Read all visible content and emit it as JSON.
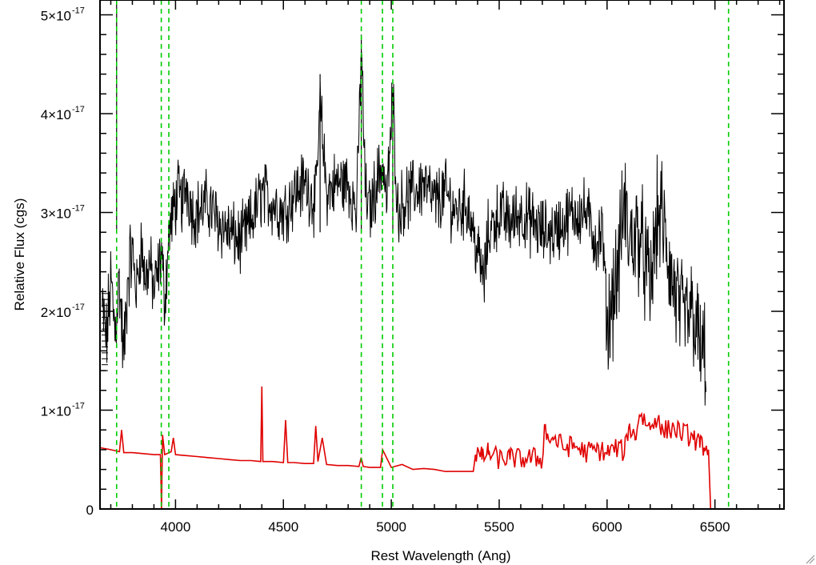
{
  "chart_data": {
    "type": "line",
    "title": "",
    "xlabel": "Rest Wavelength (Ang)",
    "ylabel": "Relative Flux (cgs)",
    "xlim": [
      3650,
      6820
    ],
    "ylim": [
      0,
      5.15
    ],
    "y_unit_label": "×10",
    "y_exponent": "-17",
    "x_ticks": [
      {
        "value": 4000,
        "label": "4000"
      },
      {
        "value": 4500,
        "label": "4500"
      },
      {
        "value": 5000,
        "label": "5000"
      },
      {
        "value": 5500,
        "label": "5500"
      },
      {
        "value": 6000,
        "label": "6000"
      },
      {
        "value": 6500,
        "label": "6500"
      }
    ],
    "y_ticks": [
      {
        "value": 0,
        "mantissa": "0",
        "label": "0",
        "exp": ""
      },
      {
        "value": 1,
        "mantissa": "1",
        "label": "1×10",
        "exp": "-17"
      },
      {
        "value": 2,
        "mantissa": "2",
        "label": "2×10",
        "exp": "-17"
      },
      {
        "value": 3,
        "mantissa": "3",
        "label": "3×10",
        "exp": "-17"
      },
      {
        "value": 4,
        "mantissa": "4",
        "label": "4×10",
        "exp": "-17"
      },
      {
        "value": 5,
        "mantissa": "5",
        "label": "5×10",
        "exp": "-17"
      }
    ],
    "series": [
      {
        "color": "#000000",
        "x": [
          3660,
          3680,
          3700,
          3720,
          3730,
          3740,
          3760,
          3780,
          3800,
          3820,
          3840,
          3860,
          3880,
          3900,
          3920,
          3935,
          3950,
          3970,
          3990,
          4010,
          4030,
          4050,
          4080,
          4100,
          4150,
          4200,
          4250,
          4300,
          4350,
          4400,
          4450,
          4500,
          4550,
          4600,
          4650,
          4670,
          4700,
          4750,
          4800,
          4840,
          4861,
          4880,
          4900,
          4930,
          4959,
          4980,
          5007,
          5030,
          5050,
          5100,
          5150,
          5200,
          5250,
          5300,
          5350,
          5400,
          5430,
          5450,
          5500,
          5550,
          5600,
          5650,
          5700,
          5750,
          5800,
          5850,
          5900,
          5950,
          5980,
          6000,
          6020,
          6050,
          6080,
          6100,
          6150,
          6200,
          6230,
          6250,
          6300,
          6350,
          6400,
          6430,
          6460
        ],
        "y": [
          2.0,
          1.7,
          2.3,
          1.8,
          2.1,
          2.3,
          1.5,
          2.4,
          2.6,
          2.2,
          2.7,
          2.3,
          2.5,
          2.2,
          2.4,
          2.6,
          2.1,
          2.8,
          3.0,
          3.2,
          3.1,
          3.3,
          3.0,
          3.0,
          3.1,
          2.9,
          2.8,
          2.7,
          2.9,
          3.2,
          3.1,
          3.0,
          3.2,
          3.3,
          3.1,
          4.1,
          3.2,
          3.3,
          3.3,
          3.0,
          4.7,
          3.2,
          3.0,
          3.3,
          3.5,
          3.1,
          4.2,
          3.0,
          3.1,
          3.2,
          3.3,
          3.1,
          3.2,
          3.0,
          3.1,
          2.6,
          2.3,
          2.8,
          3.0,
          2.9,
          3.0,
          2.9,
          2.8,
          2.8,
          2.9,
          3.0,
          3.0,
          2.7,
          2.8,
          1.8,
          2.1,
          2.4,
          3.1,
          2.7,
          2.8,
          2.2,
          2.9,
          3.0,
          2.3,
          1.9,
          2.0,
          1.6,
          1.5
        ]
      },
      {
        "color": "#e00000",
        "x": [
          3650,
          3700,
          3740,
          3750,
          3760,
          3800,
          3850,
          3900,
          3930,
          3935,
          3940,
          3950,
          3980,
          3990,
          4000,
          4050,
          4100,
          4150,
          4200,
          4250,
          4300,
          4350,
          4395,
          4400,
          4405,
          4450,
          4500,
          4510,
          4520,
          4550,
          4600,
          4640,
          4650,
          4660,
          4680,
          4700,
          4750,
          4800,
          4850,
          4860,
          4870,
          4900,
          4950,
          4960,
          5000,
          5050,
          5100,
          5150,
          5200,
          5250,
          5300,
          5350,
          5380,
          5390,
          5420,
          5450,
          5500,
          5550,
          5600,
          5650,
          5700,
          5710,
          5720,
          5750,
          5800,
          5850,
          5900,
          5950,
          6000,
          6050,
          6080,
          6100,
          6130,
          6150,
          6200,
          6240,
          6250,
          6300,
          6350,
          6400,
          6430,
          6450,
          6470,
          6480,
          6500,
          6820
        ],
        "y": [
          0.62,
          0.6,
          0.58,
          0.8,
          0.57,
          0.57,
          0.56,
          0.55,
          0.55,
          0.0,
          0.75,
          0.55,
          0.58,
          0.72,
          0.55,
          0.54,
          0.53,
          0.52,
          0.51,
          0.5,
          0.49,
          0.49,
          0.48,
          1.24,
          0.48,
          0.48,
          0.47,
          0.9,
          0.47,
          0.47,
          0.46,
          0.46,
          0.84,
          0.48,
          0.72,
          0.45,
          0.44,
          0.44,
          0.43,
          0.52,
          0.43,
          0.42,
          0.42,
          0.6,
          0.42,
          0.45,
          0.4,
          0.41,
          0.4,
          0.38,
          0.38,
          0.38,
          0.38,
          0.55,
          0.5,
          0.55,
          0.48,
          0.5,
          0.48,
          0.5,
          0.48,
          0.85,
          0.7,
          0.7,
          0.6,
          0.62,
          0.55,
          0.58,
          0.55,
          0.6,
          0.55,
          0.82,
          0.7,
          0.95,
          0.8,
          0.95,
          0.75,
          0.8,
          0.75,
          0.7,
          0.62,
          0.62,
          0.6,
          0.0,
          0.0,
          0.0
        ]
      }
    ],
    "reference_lines": [
      3727,
      3934,
      3969,
      4861,
      4959,
      5007,
      6563
    ],
    "reference_line_color": "#00cc00"
  }
}
